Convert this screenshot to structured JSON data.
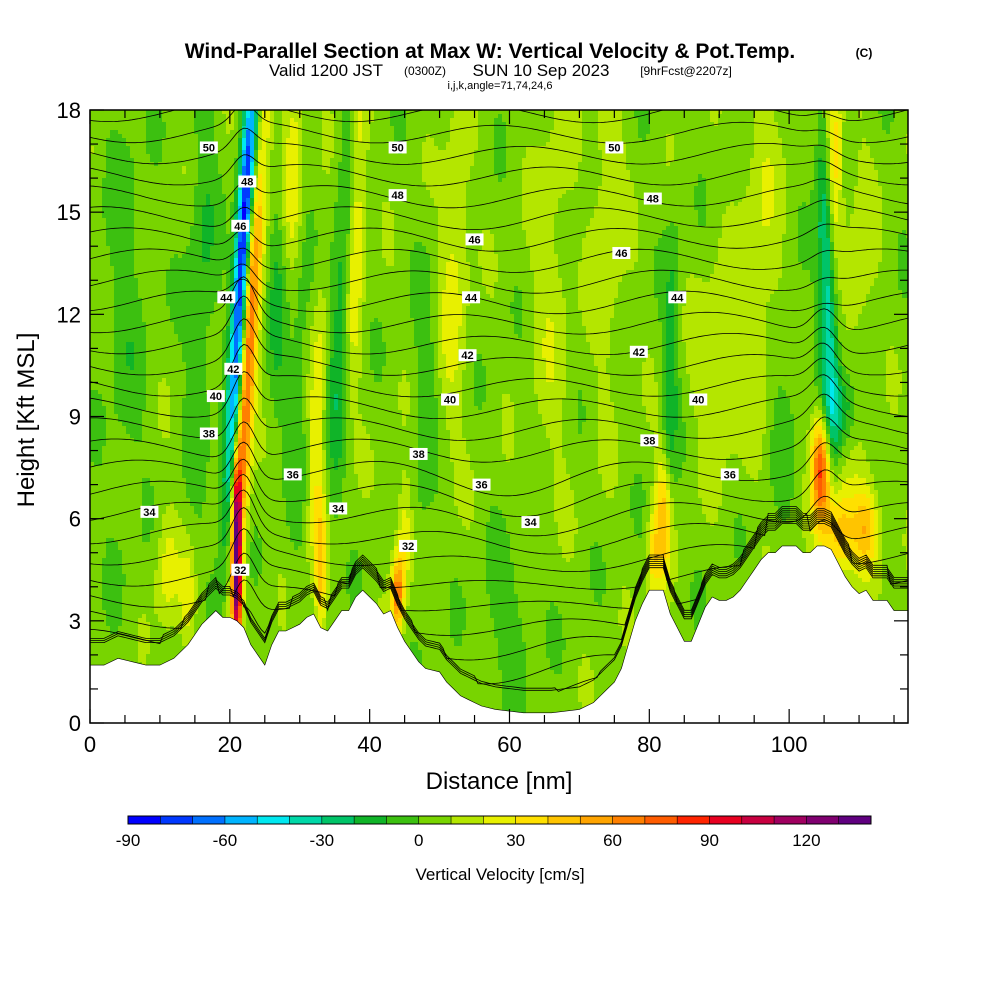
{
  "chart_data": {
    "type": "heatmap",
    "title": "Wind-Parallel Section at Max W: Vertical Velocity & Pot.Temp.",
    "title_mark": "(C)",
    "subtitle": {
      "valid_label": "Valid 1200 JST",
      "utc": "(0300Z)",
      "date": "SUN 10 Sep 2023",
      "forecast": "[9hrFcst@2207z]"
    },
    "grid_info": "i,j,k,angle=71,74,24,6",
    "xlabel": "Distance [nm]",
    "ylabel": "Height [Kft MSL]",
    "xlim": [
      0,
      117
    ],
    "ylim": [
      0,
      18
    ],
    "x_ticks": [
      0,
      20,
      40,
      60,
      80,
      100
    ],
    "y_ticks": [
      0,
      3,
      6,
      9,
      12,
      15,
      18
    ],
    "x_tick_labels": [
      "0",
      "20",
      "40",
      "60",
      "80",
      "100"
    ],
    "y_tick_labels": [
      "0",
      "3",
      "6",
      "9",
      "12",
      "15",
      "18"
    ],
    "colorbar": {
      "label": "Vertical Velocity [cm/s]",
      "min": -90,
      "max": 140,
      "step": 10,
      "ticks": [
        "-90",
        "-60",
        "-30",
        "0",
        "30",
        "60",
        "90",
        "120"
      ],
      "tick_values": [
        -90,
        -60,
        -30,
        0,
        30,
        60,
        90,
        120
      ],
      "colors": [
        "#0000ff",
        "#0038ff",
        "#0070ff",
        "#00b4ff",
        "#00e8f0",
        "#00d8a8",
        "#00c468",
        "#10b428",
        "#3cc010",
        "#78d400",
        "#b4e600",
        "#e8f000",
        "#ffe000",
        "#ffc400",
        "#ffa400",
        "#ff8000",
        "#ff5c00",
        "#ff2400",
        "#e80020",
        "#c80040",
        "#a00060",
        "#800070",
        "#600080"
      ]
    },
    "terrain_kft": [
      [
        0,
        1.7
      ],
      [
        2,
        1.7
      ],
      [
        4,
        1.9
      ],
      [
        6,
        1.8
      ],
      [
        8,
        1.7
      ],
      [
        10,
        1.7
      ],
      [
        12,
        1.9
      ],
      [
        14,
        2.3
      ],
      [
        15,
        2.6
      ],
      [
        16,
        2.9
      ],
      [
        17,
        3.1
      ],
      [
        18,
        3.3
      ],
      [
        19,
        3.1
      ],
      [
        20,
        3.1
      ],
      [
        21,
        3.0
      ],
      [
        22,
        2.8
      ],
      [
        23,
        2.3
      ],
      [
        24,
        2.0
      ],
      [
        25,
        1.7
      ],
      [
        26,
        2.3
      ],
      [
        27,
        2.7
      ],
      [
        28,
        2.7
      ],
      [
        29,
        2.8
      ],
      [
        30,
        2.9
      ],
      [
        31,
        3.1
      ],
      [
        32,
        3.2
      ],
      [
        33,
        2.8
      ],
      [
        34,
        2.7
      ],
      [
        35,
        3.0
      ],
      [
        36,
        3.3
      ],
      [
        37,
        3.3
      ],
      [
        38,
        3.7
      ],
      [
        39,
        3.9
      ],
      [
        40,
        3.7
      ],
      [
        41,
        3.5
      ],
      [
        42,
        3.2
      ],
      [
        43,
        3.3
      ],
      [
        44,
        2.8
      ],
      [
        45,
        2.4
      ],
      [
        46,
        2.1
      ],
      [
        47,
        1.8
      ],
      [
        48,
        1.6
      ],
      [
        50,
        1.5
      ],
      [
        51,
        1.2
      ],
      [
        52,
        1.0
      ],
      [
        53,
        0.8
      ],
      [
        54,
        0.7
      ],
      [
        55,
        0.6
      ],
      [
        56,
        0.5
      ],
      [
        58,
        0.4
      ],
      [
        62,
        0.3
      ],
      [
        66,
        0.3
      ],
      [
        70,
        0.4
      ],
      [
        72,
        0.6
      ],
      [
        73,
        0.8
      ],
      [
        74,
        1.0
      ],
      [
        75,
        1.2
      ],
      [
        76,
        1.6
      ],
      [
        77,
        2.3
      ],
      [
        78,
        3.0
      ],
      [
        79,
        3.5
      ],
      [
        80,
        3.9
      ],
      [
        81,
        3.9
      ],
      [
        82,
        3.9
      ],
      [
        83,
        3.2
      ],
      [
        84,
        2.8
      ],
      [
        85,
        2.4
      ],
      [
        86,
        2.4
      ],
      [
        87,
        2.9
      ],
      [
        88,
        3.4
      ],
      [
        89,
        3.7
      ],
      [
        90,
        3.6
      ],
      [
        91,
        3.6
      ],
      [
        92,
        3.7
      ],
      [
        93,
        3.9
      ],
      [
        94,
        4.2
      ],
      [
        95,
        4.5
      ],
      [
        96,
        4.8
      ],
      [
        97,
        5.0
      ],
      [
        98,
        5.0
      ],
      [
        99,
        5.2
      ],
      [
        100,
        5.2
      ],
      [
        101,
        5.2
      ],
      [
        102,
        5.0
      ],
      [
        103,
        5.0
      ],
      [
        104,
        5.2
      ],
      [
        105,
        5.2
      ],
      [
        106,
        5.1
      ],
      [
        107,
        4.7
      ],
      [
        108,
        4.3
      ],
      [
        109,
        4.0
      ],
      [
        110,
        3.8
      ],
      [
        111,
        3.9
      ],
      [
        112,
        3.6
      ],
      [
        114,
        3.6
      ],
      [
        115,
        3.3
      ],
      [
        117,
        3.3
      ]
    ],
    "w_features": [
      {
        "x": 21,
        "y": 5.5,
        "sx": 0.45,
        "sy": 1.6,
        "amp": 100,
        "tilt": 0
      },
      {
        "x": 21,
        "y": 3.6,
        "sx": 0.5,
        "sy": 0.9,
        "amp": 60,
        "tilt": 0
      },
      {
        "x": 22,
        "y": 8.5,
        "sx": 0.8,
        "sy": 3.0,
        "amp": 55,
        "tilt": 0.25
      },
      {
        "x": 23.5,
        "y": 14,
        "sx": 1.0,
        "sy": 3.6,
        "amp": 45,
        "tilt": 0.3
      },
      {
        "x": 22.2,
        "y": 15,
        "sx": 0.8,
        "sy": 3.2,
        "amp": -95,
        "tilt": 0.3
      },
      {
        "x": 21,
        "y": 10,
        "sx": 0.7,
        "sy": 2.5,
        "amp": -45,
        "tilt": 0.25
      },
      {
        "x": 19.5,
        "y": 7,
        "sx": 0.7,
        "sy": 1.8,
        "amp": -25,
        "tilt": 0.2
      },
      {
        "x": 11,
        "y": 4.5,
        "sx": 1.2,
        "sy": 1.2,
        "amp": 20,
        "tilt": 0
      },
      {
        "x": 14,
        "y": 3.7,
        "sx": 0.8,
        "sy": 1.0,
        "amp": 18,
        "tilt": 0
      },
      {
        "x": 33,
        "y": 4.5,
        "sx": 0.6,
        "sy": 1.6,
        "amp": 38,
        "tilt": 0
      },
      {
        "x": 32.5,
        "y": 9,
        "sx": 0.8,
        "sy": 3.0,
        "amp": 22,
        "tilt": 0.15
      },
      {
        "x": 30,
        "y": 11,
        "sx": 1.0,
        "sy": 4.0,
        "amp": -12,
        "tilt": 0.1
      },
      {
        "x": 38,
        "y": 14.5,
        "sx": 0.9,
        "sy": 3.5,
        "amp": 30,
        "tilt": 0.15
      },
      {
        "x": 36,
        "y": 12,
        "sx": 1.1,
        "sy": 4.0,
        "amp": -25,
        "tilt": 0.2
      },
      {
        "x": 44,
        "y": 3.8,
        "sx": 0.6,
        "sy": 0.8,
        "amp": 60,
        "tilt": 0
      },
      {
        "x": 45,
        "y": 5.5,
        "sx": 0.8,
        "sy": 1.2,
        "amp": 25,
        "tilt": 0
      },
      {
        "x": 52,
        "y": 13,
        "sx": 1.5,
        "sy": 3.5,
        "amp": 18,
        "tilt": 0.15
      },
      {
        "x": 48,
        "y": 9,
        "sx": 1.3,
        "sy": 3.0,
        "amp": -12,
        "tilt": 0.1
      },
      {
        "x": 29,
        "y": 16.5,
        "sx": 1.2,
        "sy": 2.5,
        "amp": 25,
        "tilt": 0.1
      },
      {
        "x": 27,
        "y": 13,
        "sx": 1.0,
        "sy": 3.0,
        "amp": -18,
        "tilt": 0.1
      },
      {
        "x": 16,
        "y": 13,
        "sx": 1.5,
        "sy": 4.0,
        "amp": -15,
        "tilt": 0.1
      },
      {
        "x": 66,
        "y": 13,
        "sx": 2.0,
        "sy": 4.0,
        "amp": 12,
        "tilt": 0
      },
      {
        "x": 74,
        "y": 15,
        "sx": 1.6,
        "sy": 3.5,
        "amp": 15,
        "tilt": 0
      },
      {
        "x": 82,
        "y": 6.0,
        "sx": 0.8,
        "sy": 1.4,
        "amp": 45,
        "tilt": 0
      },
      {
        "x": 80.5,
        "y": 4.9,
        "sx": 0.6,
        "sy": 0.9,
        "amp": 28,
        "tilt": 0
      },
      {
        "x": 83,
        "y": 10,
        "sx": 0.8,
        "sy": 3.0,
        "amp": -22,
        "tilt": 0.1
      },
      {
        "x": 90,
        "y": 10.5,
        "sx": 2.5,
        "sy": 2.0,
        "amp": 16,
        "tilt": 0
      },
      {
        "x": 104.5,
        "y": 7.5,
        "sx": 0.9,
        "sy": 1.1,
        "amp": 75,
        "tilt": 0
      },
      {
        "x": 107,
        "y": 5.6,
        "sx": 1.6,
        "sy": 1.0,
        "amp": 48,
        "tilt": 0
      },
      {
        "x": 111,
        "y": 5.7,
        "sx": 1.4,
        "sy": 0.9,
        "amp": 42,
        "tilt": 0
      },
      {
        "x": 105.5,
        "y": 12.5,
        "sx": 0.9,
        "sy": 3.5,
        "amp": -45,
        "tilt": -0.15
      },
      {
        "x": 107.5,
        "y": 9.2,
        "sx": 1.8,
        "sy": 0.8,
        "amp": -25,
        "tilt": 0
      },
      {
        "x": 106.5,
        "y": 16.5,
        "sx": 0.8,
        "sy": 2.0,
        "amp": 35,
        "tilt": 0
      },
      {
        "x": 110,
        "y": 13,
        "sx": 1.5,
        "sy": 3.0,
        "amp": 12,
        "tilt": 0
      },
      {
        "x": 5,
        "y": 12,
        "sx": 2.0,
        "sy": 5.0,
        "amp": -10,
        "tilt": 0
      },
      {
        "x": 60,
        "y": 3,
        "sx": 3.0,
        "sy": 1.5,
        "amp": -10,
        "tilt": 0
      },
      {
        "x": 96,
        "y": 14,
        "sx": 2.0,
        "sy": 4.0,
        "amp": 14,
        "tilt": 0
      },
      {
        "x": 99,
        "y": 9,
        "sx": 1.5,
        "sy": 2.0,
        "amp": -10,
        "tilt": 0
      }
    ],
    "theta_contour_labels": [
      {
        "text": "50",
        "x": 17,
        "y": 16.9
      },
      {
        "text": "50",
        "x": 44,
        "y": 16.9
      },
      {
        "text": "50",
        "x": 75,
        "y": 16.9
      },
      {
        "text": "48",
        "x": 22.5,
        "y": 15.9
      },
      {
        "text": "48",
        "x": 44,
        "y": 15.5
      },
      {
        "text": "48",
        "x": 80.5,
        "y": 15.4
      },
      {
        "text": "46",
        "x": 21.5,
        "y": 14.6
      },
      {
        "text": "46",
        "x": 55,
        "y": 14.2
      },
      {
        "text": "46",
        "x": 76,
        "y": 13.8
      },
      {
        "text": "44",
        "x": 19.5,
        "y": 12.5
      },
      {
        "text": "44",
        "x": 54.5,
        "y": 12.5
      },
      {
        "text": "44",
        "x": 84,
        "y": 12.5
      },
      {
        "text": "42",
        "x": 20.5,
        "y": 10.4
      },
      {
        "text": "42",
        "x": 54,
        "y": 10.8
      },
      {
        "text": "42",
        "x": 78.5,
        "y": 10.9
      },
      {
        "text": "40",
        "x": 18,
        "y": 9.6
      },
      {
        "text": "40",
        "x": 51.5,
        "y": 9.5
      },
      {
        "text": "40",
        "x": 87,
        "y": 9.5
      },
      {
        "text": "38",
        "x": 17,
        "y": 8.5
      },
      {
        "text": "38",
        "x": 47,
        "y": 7.9
      },
      {
        "text": "38",
        "x": 80,
        "y": 8.3
      },
      {
        "text": "36",
        "x": 29,
        "y": 7.3
      },
      {
        "text": "36",
        "x": 56,
        "y": 7.0
      },
      {
        "text": "36",
        "x": 91.5,
        "y": 7.3
      },
      {
        "text": "34",
        "x": 8.5,
        "y": 6.2
      },
      {
        "text": "34",
        "x": 35.5,
        "y": 6.3
      },
      {
        "text": "34",
        "x": 63,
        "y": 5.9
      },
      {
        "text": "32",
        "x": 45.5,
        "y": 5.2
      },
      {
        "text": "32",
        "x": 21.5,
        "y": 4.5
      }
    ]
  }
}
